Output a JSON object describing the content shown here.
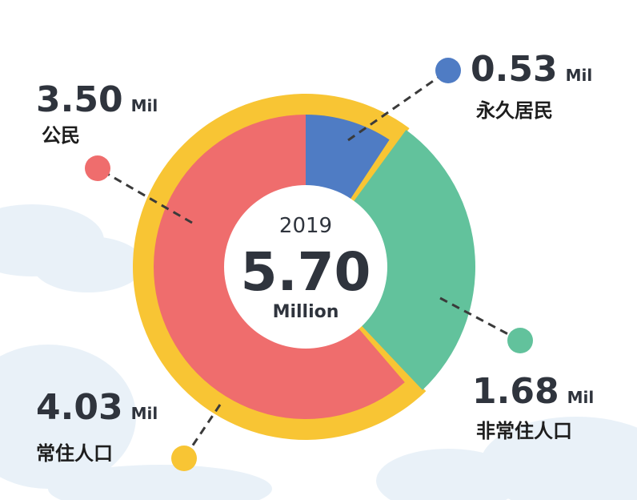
{
  "chart_data": {
    "type": "donut",
    "year": "2019",
    "total": "5.70",
    "total_unit": "Million",
    "unit": "Mil",
    "categories": [
      "永久居民",
      "非常住人口",
      "公民"
    ],
    "values": [
      0.53,
      1.68,
      3.5
    ],
    "value_labels": [
      "0.53",
      "1.68",
      "3.50"
    ],
    "colors": [
      "#4f7cc4",
      "#62c29c",
      "#ef6d6d"
    ],
    "ring": {
      "name": "常住人口",
      "value": 4.03,
      "value_label": "4.03",
      "color": "#f8c534"
    }
  }
}
